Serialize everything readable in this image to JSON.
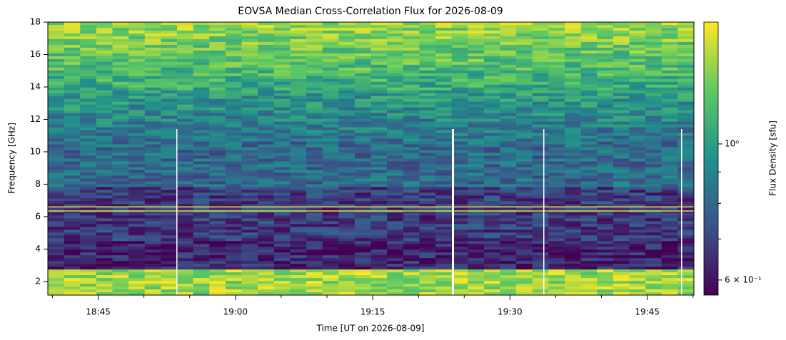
{
  "chart_data": {
    "type": "spectrogram",
    "title": "EOVSA Median Cross-Correlation Flux for 2026-08-09",
    "xlabel": "Time [UT on 2026-08-09]",
    "ylabel": "Frequency [GHz]",
    "xlim": [
      1119.5,
      1190.1
    ],
    "xticks": [
      {
        "value": 1125,
        "label": "18:45"
      },
      {
        "value": 1140,
        "label": "19:00"
      },
      {
        "value": 1155,
        "label": "19:15"
      },
      {
        "value": 1170,
        "label": "19:30"
      },
      {
        "value": 1185,
        "label": "19:45"
      }
    ],
    "xminorticks": [
      1120,
      1130,
      1135,
      1145,
      1150,
      1160,
      1165,
      1175,
      1180,
      1190
    ],
    "ylim": [
      1.16,
      18
    ],
    "yticks": [
      2,
      4,
      6,
      8,
      10,
      12,
      14,
      16,
      18
    ],
    "colorbar": {
      "label": "Flux Density [sfu]",
      "scale": "log",
      "clim": [
        0.567,
        1.58
      ],
      "ticks": [
        {
          "value": 0.6,
          "label": "6 × 10⁻¹"
        },
        {
          "value": 1,
          "label": "10⁰"
        }
      ],
      "minorticks": [
        0.7,
        0.8,
        0.9
      ],
      "colormap": "viridis"
    }
  }
}
